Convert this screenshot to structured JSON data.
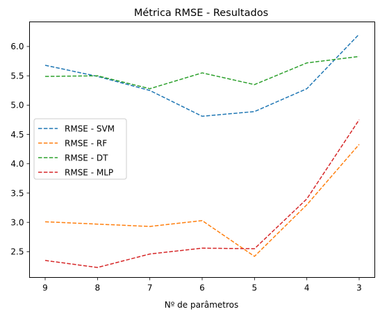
{
  "chart_data": {
    "type": "line",
    "title": "Métrica RMSE - Resultados",
    "xlabel": "Nº de parâmetros",
    "ylabel": "",
    "categories": [
      "9",
      "8",
      "7",
      "6",
      "5",
      "4",
      "3"
    ],
    "y_ticks": [
      "2.5",
      "3.0",
      "3.5",
      "4.0",
      "4.5",
      "5.0",
      "5.5",
      "6.0"
    ],
    "ylim": [
      2.06,
      6.42
    ],
    "grid": false,
    "legend_position": "center-left",
    "series": [
      {
        "name": "RMSE - SVM",
        "color": "#1f77b4",
        "dash": "dashed",
        "values": [
          5.68,
          5.49,
          5.25,
          4.81,
          4.89,
          5.28,
          6.21
        ]
      },
      {
        "name": "RMSE - RF",
        "color": "#ff7f0e",
        "dash": "dashed",
        "values": [
          3.01,
          2.97,
          2.93,
          3.03,
          2.42,
          3.3,
          4.33
        ]
      },
      {
        "name": "RMSE - DT",
        "color": "#2ca02c",
        "dash": "dashed",
        "values": [
          5.49,
          5.5,
          5.28,
          5.55,
          5.35,
          5.72,
          5.83
        ]
      },
      {
        "name": "RMSE - MLP",
        "color": "#d62728",
        "dash": "dashed",
        "values": [
          2.35,
          2.23,
          2.46,
          2.56,
          2.55,
          3.4,
          4.75
        ]
      }
    ]
  }
}
